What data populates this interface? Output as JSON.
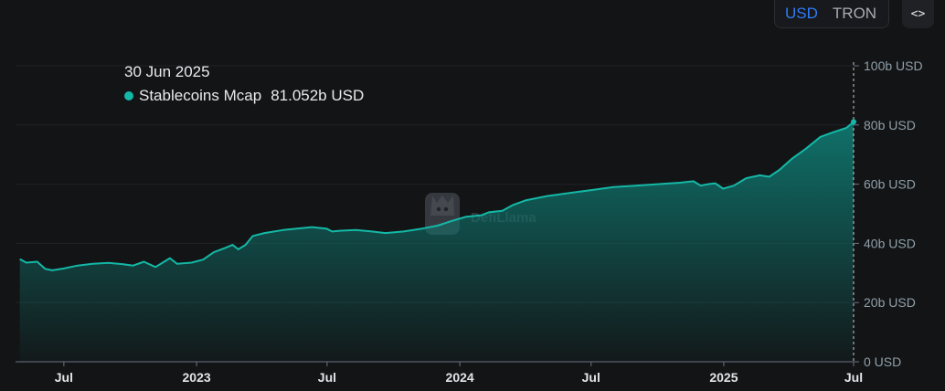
{
  "toggle": {
    "options": [
      "USD",
      "TRON"
    ],
    "active": "USD"
  },
  "embed_button": {
    "label": "<>",
    "icon": "code-embed-icon"
  },
  "tooltip": {
    "date": "30 Jun 2025",
    "series_name": "Stablecoins Mcap",
    "value": "81.052b USD",
    "dot_color": "#14b8a6"
  },
  "watermark": {
    "text": "DefiLlama",
    "icon": "llama-logo-icon"
  },
  "colors": {
    "line": "#14b8a6",
    "fill_top": "#0f766e",
    "accent_active": "#2f7cf6",
    "background": "#131416"
  },
  "chart_data": {
    "type": "area",
    "series": [
      {
        "name": "Stablecoins Mcap",
        "points": [
          [
            "2022-05-01",
            34.7
          ],
          [
            "2022-05-10",
            33.5
          ],
          [
            "2022-05-25",
            33.8
          ],
          [
            "2022-06-05",
            31.4
          ],
          [
            "2022-06-15",
            30.9
          ],
          [
            "2022-07-01",
            31.5
          ],
          [
            "2022-07-20",
            32.5
          ],
          [
            "2022-08-10",
            33.1
          ],
          [
            "2022-09-01",
            33.4
          ],
          [
            "2022-09-20",
            33.0
          ],
          [
            "2022-10-05",
            32.5
          ],
          [
            "2022-10-20",
            33.8
          ],
          [
            "2022-11-05",
            32.0
          ],
          [
            "2022-11-15",
            33.5
          ],
          [
            "2022-11-25",
            35.0
          ],
          [
            "2022-12-05",
            33.1
          ],
          [
            "2022-12-25",
            33.5
          ],
          [
            "2023-01-10",
            34.5
          ],
          [
            "2023-01-25",
            37.0
          ],
          [
            "2023-02-10",
            38.5
          ],
          [
            "2023-02-20",
            39.5
          ],
          [
            "2023-02-28",
            38.0
          ],
          [
            "2023-03-10",
            39.5
          ],
          [
            "2023-03-20",
            42.5
          ],
          [
            "2023-04-05",
            43.5
          ],
          [
            "2023-05-01",
            44.5
          ],
          [
            "2023-05-20",
            45.0
          ],
          [
            "2023-06-10",
            45.5
          ],
          [
            "2023-06-30",
            45.0
          ],
          [
            "2023-07-08",
            44.0
          ],
          [
            "2023-07-20",
            44.3
          ],
          [
            "2023-08-10",
            44.5
          ],
          [
            "2023-09-01",
            44.0
          ],
          [
            "2023-09-20",
            43.5
          ],
          [
            "2023-10-15",
            44.0
          ],
          [
            "2023-11-10",
            45.0
          ],
          [
            "2023-12-01",
            46.0
          ],
          [
            "2023-12-20",
            47.5
          ],
          [
            "2024-01-10",
            49.0
          ],
          [
            "2024-01-31",
            49.5
          ],
          [
            "2024-02-10",
            50.5
          ],
          [
            "2024-02-29",
            51.0
          ],
          [
            "2024-03-15",
            53.0
          ],
          [
            "2024-04-01",
            54.5
          ],
          [
            "2024-05-01",
            56.0
          ],
          [
            "2024-06-01",
            57.0
          ],
          [
            "2024-07-01",
            58.0
          ],
          [
            "2024-08-01",
            59.0
          ],
          [
            "2024-09-01",
            59.5
          ],
          [
            "2024-10-01",
            60.0
          ],
          [
            "2024-11-01",
            60.5
          ],
          [
            "2024-11-20",
            61.0
          ],
          [
            "2024-11-30",
            59.5
          ],
          [
            "2024-12-10",
            60.0
          ],
          [
            "2024-12-20",
            60.3
          ],
          [
            "2024-12-31",
            58.5
          ],
          [
            "2025-01-15",
            59.5
          ],
          [
            "2025-02-01",
            62.0
          ],
          [
            "2025-02-20",
            63.0
          ],
          [
            "2025-03-05",
            62.5
          ],
          [
            "2025-03-20",
            65.0
          ],
          [
            "2025-04-05",
            68.5
          ],
          [
            "2025-04-25",
            72.0
          ],
          [
            "2025-05-15",
            76.0
          ],
          [
            "2025-06-01",
            77.5
          ],
          [
            "2025-06-20",
            79.0
          ],
          [
            "2025-06-30",
            81.05
          ]
        ]
      }
    ],
    "x_domain": [
      "2022-04-25",
      "2025-06-30"
    ],
    "x_ticks": [
      {
        "date": "2022-07-01",
        "label": "Jul"
      },
      {
        "date": "2023-01-01",
        "label": "2023"
      },
      {
        "date": "2023-07-01",
        "label": "Jul"
      },
      {
        "date": "2024-01-01",
        "label": "2024"
      },
      {
        "date": "2024-07-01",
        "label": "Jul"
      },
      {
        "date": "2025-01-01",
        "label": "2025"
      },
      {
        "date": "2025-07-01",
        "label": "Jul"
      }
    ],
    "y_ticks": [
      "0 USD",
      "20b USD",
      "40b USD",
      "60b USD",
      "80b USD",
      "100b USD"
    ],
    "y_tick_values": [
      0,
      20,
      40,
      60,
      80,
      100
    ],
    "ylim": [
      0,
      100
    ],
    "y_axis_position": "right",
    "grid": true,
    "title": "",
    "xlabel": "",
    "ylabel": ""
  }
}
